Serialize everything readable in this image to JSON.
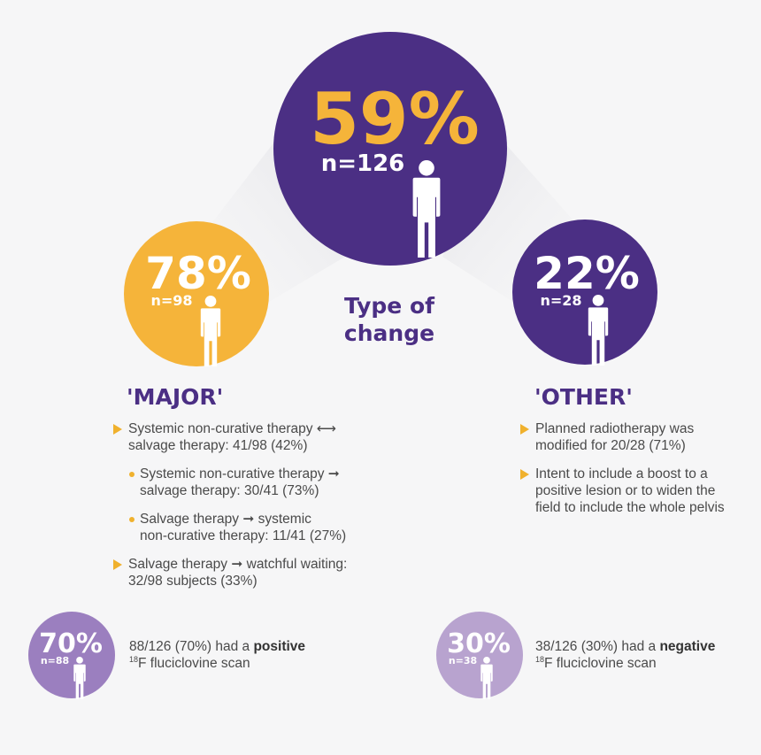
{
  "center": {
    "percent": "59%",
    "n": "n=126"
  },
  "major_circle": {
    "percent": "78%",
    "n": "n=98"
  },
  "other_circle": {
    "percent": "22%",
    "n": "n=28"
  },
  "type_of_change": {
    "line1": "Type of",
    "line2": "change"
  },
  "major": {
    "heading": "'MAJOR'",
    "items": [
      {
        "level": 1,
        "lines": [
          "Systemic non-curative therapy ⟷",
          "salvage therapy: 41/98 (42%)"
        ]
      },
      {
        "level": 2,
        "lines": [
          "Systemic non-curative therapy ➞",
          "salvage therapy: 30/41 (73%)"
        ]
      },
      {
        "level": 2,
        "lines": [
          "Salvage therapy ➞ systemic",
          "non-curative therapy: 11/41 (27%)"
        ]
      },
      {
        "level": 1,
        "lines": [
          "Salvage therapy ➞ watchful waiting:",
          "32/98 subjects (33%)"
        ]
      }
    ]
  },
  "other": {
    "heading": "'OTHER'",
    "items": [
      {
        "level": 1,
        "lines": [
          "Planned radiotherapy was",
          "modified for 20/28 (71%)"
        ]
      },
      {
        "level": 1,
        "lines": [
          "Intent to include a boost to a",
          "positive lesion or to widen the",
          "field to include the whole pelvis"
        ]
      }
    ]
  },
  "positive": {
    "percent": "70%",
    "n": "n=88",
    "text_prefix": "88/126 (70%) had a ",
    "text_bold": "positive",
    "sup": "18",
    "text_suffix": "F fluciclovine scan"
  },
  "negative": {
    "percent": "30%",
    "n": "n=38",
    "text_prefix": "38/126 (30%) had a ",
    "text_bold": "negative",
    "sup": "18",
    "text_suffix": "F fluciclovine scan"
  },
  "colors": {
    "purple": "#4b2f84",
    "orange": "#f5b43a",
    "light_purple": "#9b7fbf",
    "lighter_purple": "#b8a3cf",
    "accent": "#f0b12d",
    "white": "#ffffff"
  }
}
